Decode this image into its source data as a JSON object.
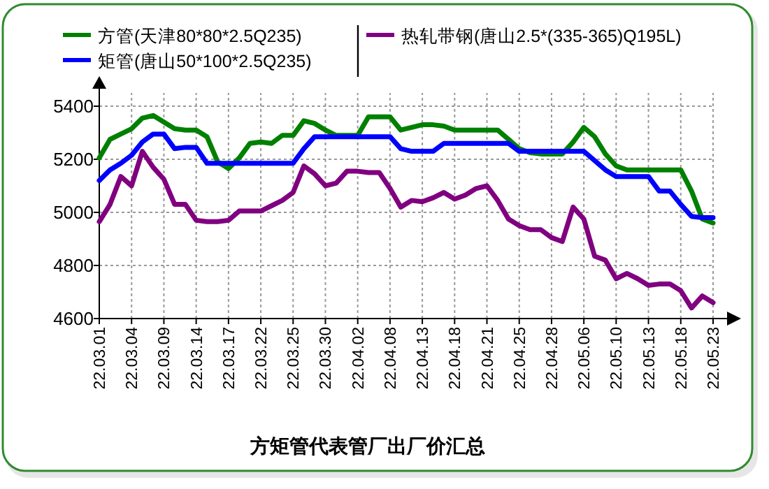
{
  "chart_data": {
    "type": "line",
    "title": "方矩管代表管厂出厂价汇总",
    "categories": [
      "22.03.01",
      null,
      null,
      "22.03.04",
      null,
      null,
      "22.03.09",
      null,
      null,
      "22.03.14",
      null,
      null,
      "22.03.17",
      null,
      null,
      "22.03.22",
      null,
      null,
      "22.03.25",
      null,
      null,
      "22.03.30",
      null,
      null,
      "22.04.02",
      null,
      null,
      "22.04.08",
      null,
      null,
      "22.04.13",
      null,
      null,
      "22.04.18",
      null,
      null,
      "22.04.21",
      null,
      null,
      "22.04.25",
      null,
      null,
      "22.04.28",
      null,
      null,
      "22.05.06",
      null,
      null,
      "22.05.10",
      null,
      null,
      "22.05.13",
      null,
      null,
      "22.05.18",
      null,
      null,
      "22.05.23"
    ],
    "series": [
      {
        "name": "方管(天津80*80*2.5Q235)",
        "color": "#008000",
        "values": [
          5205,
          5275,
          5295,
          5315,
          5355,
          5365,
          5340,
          5315,
          5310,
          5310,
          5285,
          5190,
          5165,
          5205,
          5260,
          5265,
          5260,
          5290,
          5290,
          5345,
          5335,
          5310,
          5290,
          5290,
          5290,
          5360,
          5360,
          5360,
          5310,
          5320,
          5330,
          5330,
          5325,
          5310,
          5310,
          5310,
          5310,
          5310,
          5275,
          5240,
          5225,
          5220,
          5220,
          5220,
          5265,
          5320,
          5285,
          5220,
          5175,
          5160,
          5160,
          5160,
          5160,
          5160,
          5160,
          5080,
          4975,
          4960
        ]
      },
      {
        "name": "矩管(唐山50*100*2.5Q235)",
        "color": "#0000ff",
        "values": [
          5120,
          5160,
          5185,
          5215,
          5265,
          5295,
          5295,
          5240,
          5245,
          5245,
          5185,
          5185,
          5185,
          5185,
          5185,
          5185,
          5185,
          5185,
          5185,
          5240,
          5285,
          5285,
          5285,
          5285,
          5285,
          5285,
          5285,
          5285,
          5240,
          5230,
          5230,
          5230,
          5260,
          5260,
          5260,
          5260,
          5260,
          5260,
          5260,
          5230,
          5230,
          5230,
          5230,
          5230,
          5230,
          5230,
          5195,
          5160,
          5135,
          5135,
          5135,
          5135,
          5080,
          5080,
          5030,
          4985,
          4980,
          4980
        ]
      },
      {
        "name": "热轧带钢(唐山2.5*(335-365)Q195L)",
        "color": "#800080",
        "values": [
          4965,
          5030,
          5135,
          5100,
          5230,
          5170,
          5125,
          5030,
          5030,
          4970,
          4965,
          4965,
          4970,
          5005,
          5005,
          5005,
          5025,
          5045,
          5075,
          5175,
          5145,
          5100,
          5110,
          5155,
          5155,
          5150,
          5150,
          5090,
          5020,
          5045,
          5040,
          5055,
          5075,
          5050,
          5065,
          5090,
          5100,
          5045,
          4975,
          4950,
          4935,
          4935,
          4905,
          4890,
          5020,
          4975,
          4835,
          4820,
          4750,
          4770,
          4750,
          4725,
          4730,
          4730,
          4705,
          4640,
          4685,
          4660
        ]
      }
    ],
    "ylim": [
      4600,
      5450
    ],
    "yticks": [
      4600,
      4800,
      5000,
      5200,
      5400
    ],
    "grid": true,
    "legend": "top"
  }
}
